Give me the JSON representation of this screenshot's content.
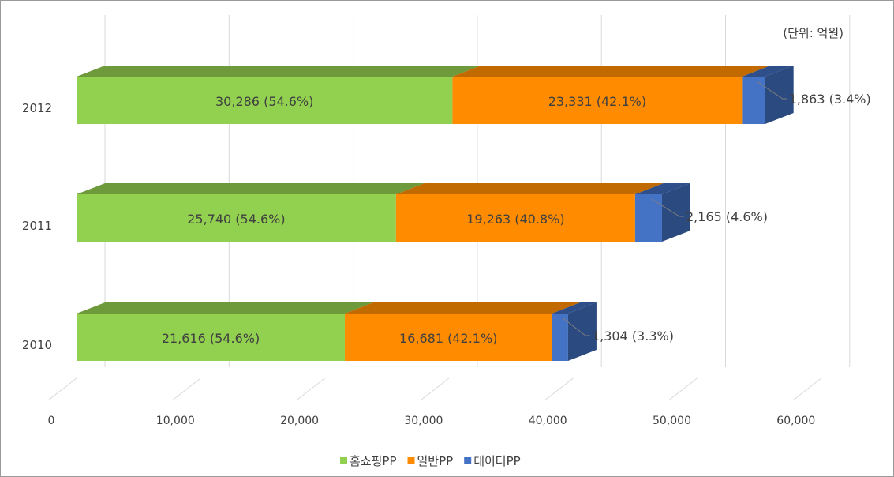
{
  "chart_data": {
    "type": "bar",
    "orientation": "horizontal",
    "stacked": true,
    "three_d": true,
    "unit_note": "(단위: 억원)",
    "categories": [
      "2010",
      "2011",
      "2012"
    ],
    "series": [
      {
        "name": "홈쇼핑PP",
        "values": [
          21616,
          25740,
          30286
        ],
        "labels": [
          "21,616 (54.6%)",
          "25,740 (54.6%)",
          "30,286 (54.6%)"
        ],
        "color": "#92D050",
        "top_color": "#6E9A3C"
      },
      {
        "name": "일반PP",
        "values": [
          16681,
          19263,
          23331
        ],
        "labels": [
          "16,681 (42.1%)",
          "19,263 (40.8%)",
          "23,331 (42.1%)"
        ],
        "color": "#FF8C00",
        "top_color": "#C06A00"
      },
      {
        "name": "데이터PP",
        "values": [
          1304,
          2165,
          1863
        ],
        "labels": [
          "1,304 (3.3%)",
          "2,165 (4.6%)",
          "1,863 (3.4%)"
        ],
        "color": "#4472C4",
        "top_color": "#2F4F8A"
      }
    ],
    "x_ticks": [
      "0",
      "10,000",
      "20,000",
      "30,000",
      "40,000",
      "50,000",
      "60,000"
    ],
    "xlim": [
      0,
      60000
    ],
    "grid": true,
    "legend_position": "bottom"
  }
}
